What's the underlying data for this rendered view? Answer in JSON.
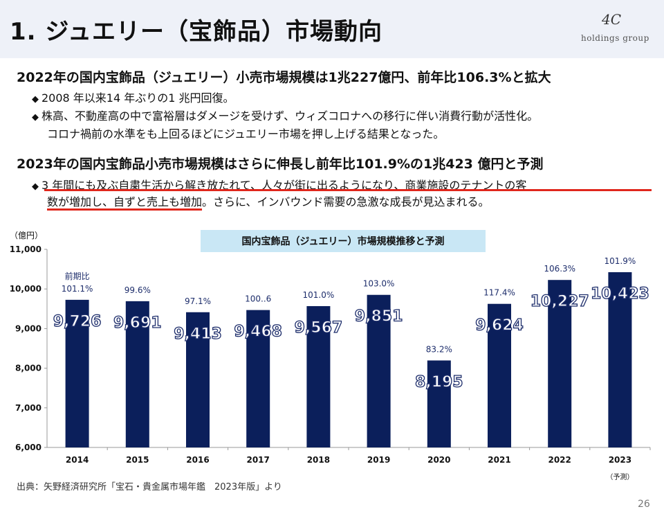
{
  "header": {
    "title": "1. ジュエリー（宝飾品）市場動向",
    "logo_mark": "4C",
    "logo_sub": "holdings group"
  },
  "section1": {
    "heading": "2022年の国内宝飾品（ジュエリー）小売市場規模は1兆227億円、前年比106.3%と拡大",
    "bullets": [
      "2008 年以来14 年ぶりの1 兆円回復。",
      "株高、不動産高の中で富裕層はダメージを受けず、ウィズコロナへの移行に伴い消費行動が活性化。"
    ],
    "continuation": "コロナ禍前の水準をも上回るほどにジュエリー市場を押し上げる結果となった。"
  },
  "section2": {
    "heading": "2023年の国内宝飾品小売市場規模はさらに伸長し前年比101.9%の1兆423 億円と予測",
    "bullet_line1": "3 年間にも及ぶ自粛生活から解き放たれて、人々が街に出るようになり、商業施設のテナントの客",
    "bullet_line2_underlined": "数が増加し、自ずと売上も増加",
    "bullet_line2_rest": "。さらに、インバウンド需要の急激な成長が見込まれる。"
  },
  "bullet_mark": "◆",
  "colors": {
    "bar": "#0b1f5b",
    "underline": "#e0271c",
    "title_band": "#eef1f8",
    "chart_title_bg": "#c9e7f5"
  },
  "chart_data": {
    "type": "bar",
    "title": "国内宝飾品（ジュエリー）市場規模推移と予測",
    "ylabel": "（億円）",
    "xlabel": "",
    "ylim": [
      6000,
      11000
    ],
    "yticks": [
      "6,000",
      "7,000",
      "8,000",
      "9,000",
      "10,000",
      "11,000"
    ],
    "categories": [
      "2014",
      "2015",
      "2016",
      "2017",
      "2018",
      "2019",
      "2020",
      "2021",
      "2022",
      "2023"
    ],
    "values": [
      9726,
      9691,
      9413,
      9468,
      9567,
      9851,
      8195,
      9624,
      10227,
      10423
    ],
    "value_labels": [
      "9,726",
      "9,691",
      "9,413",
      "9,468",
      "9,567",
      "9,851",
      "8,195",
      "9,624",
      "10,227",
      "10,423"
    ],
    "growth_labels": [
      "101.1%",
      "99.6%",
      "97.1%",
      "100..6",
      "101.0%",
      "103.0%",
      "83.2%",
      "117.4%",
      "106.3%",
      "101.9%"
    ],
    "growth_prefix": "前期比",
    "forecast_note": "（予測）",
    "grid": false
  },
  "footer": {
    "source": "出典：矢野経済研究所「宝石・貴金属市場年鑑　2023年版」より",
    "page": "26"
  }
}
